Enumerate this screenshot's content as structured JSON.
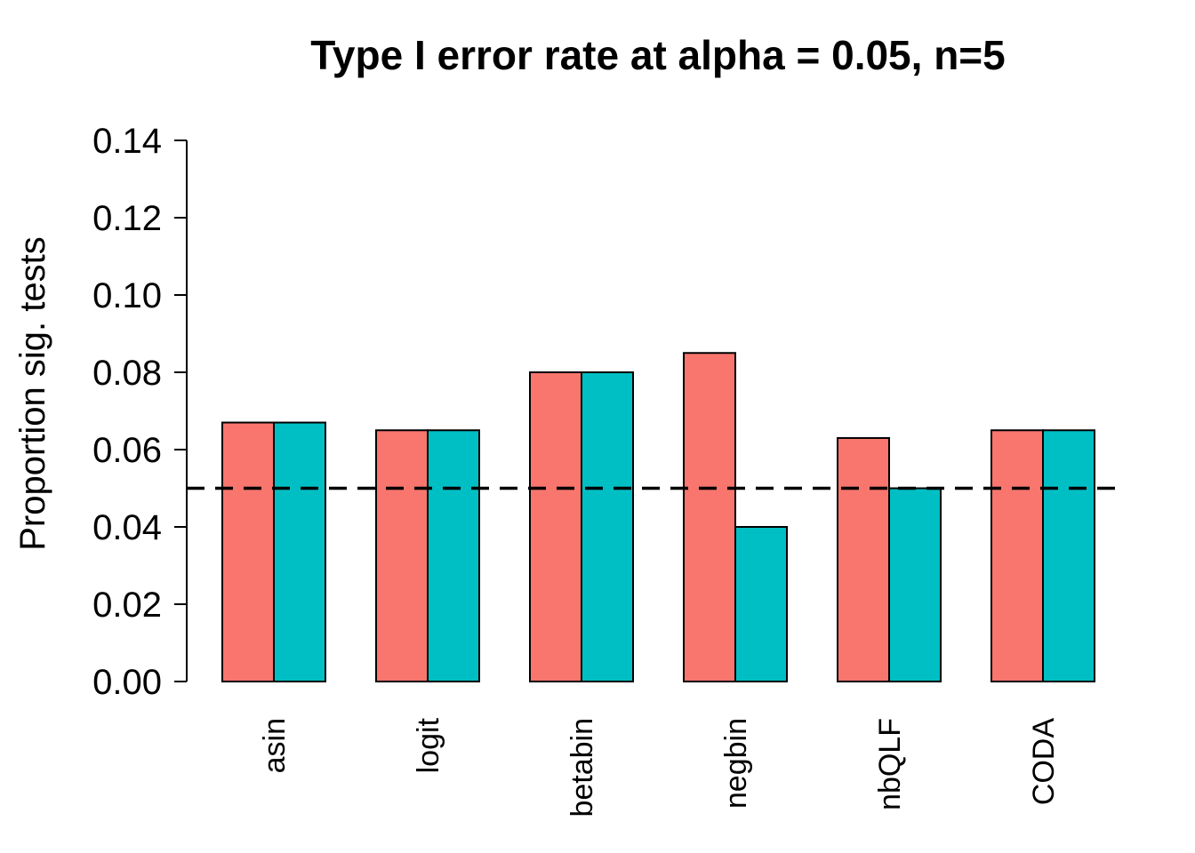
{
  "chart_data": {
    "type": "bar",
    "title": "Type I error rate at alpha = 0.05, n=5",
    "xlabel": "",
    "ylabel": "Proportion sig. tests",
    "ylim": [
      0,
      0.14
    ],
    "yticks": [
      "0.00",
      "0.02",
      "0.04",
      "0.06",
      "0.08",
      "0.10",
      "0.12",
      "0.14"
    ],
    "categories": [
      "asin",
      "logit",
      "betabin",
      "negbin",
      "nbQLF",
      "CODA"
    ],
    "series": [
      {
        "color": "#F8766D",
        "values": [
          0.067,
          0.065,
          0.08,
          0.085,
          0.063,
          0.065
        ]
      },
      {
        "color": "#00BFC4",
        "values": [
          0.067,
          0.065,
          0.08,
          0.04,
          0.05,
          0.065
        ]
      }
    ],
    "reference_line": {
      "y": 0.05,
      "style": "dashed"
    },
    "grid": false,
    "legend": "none"
  }
}
